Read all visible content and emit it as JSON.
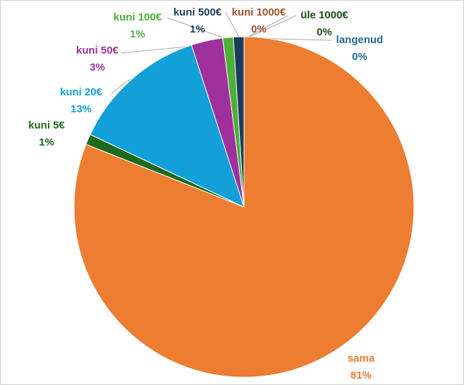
{
  "chart_data": {
    "type": "pie",
    "categories": [
      "sama",
      "kuni 5€",
      "kuni 20€",
      "kuni 50€",
      "kuni 100€",
      "kuni 500€",
      "kuni 1000€",
      "üle 1000€",
      "langenud"
    ],
    "values": [
      81,
      1,
      13,
      3,
      1,
      1,
      0,
      0,
      0
    ],
    "value_labels": [
      "81%",
      "1%",
      "13%",
      "3%",
      "1%",
      "1%",
      "0%",
      "0%",
      "0%"
    ],
    "colors": [
      "#ed7d31",
      "#1e6b1e",
      "#13a0d8",
      "#a0309e",
      "#4caf38",
      "#1a3d5c",
      "#a0522d",
      "#1b4d1b",
      "#1f6d8c"
    ]
  }
}
